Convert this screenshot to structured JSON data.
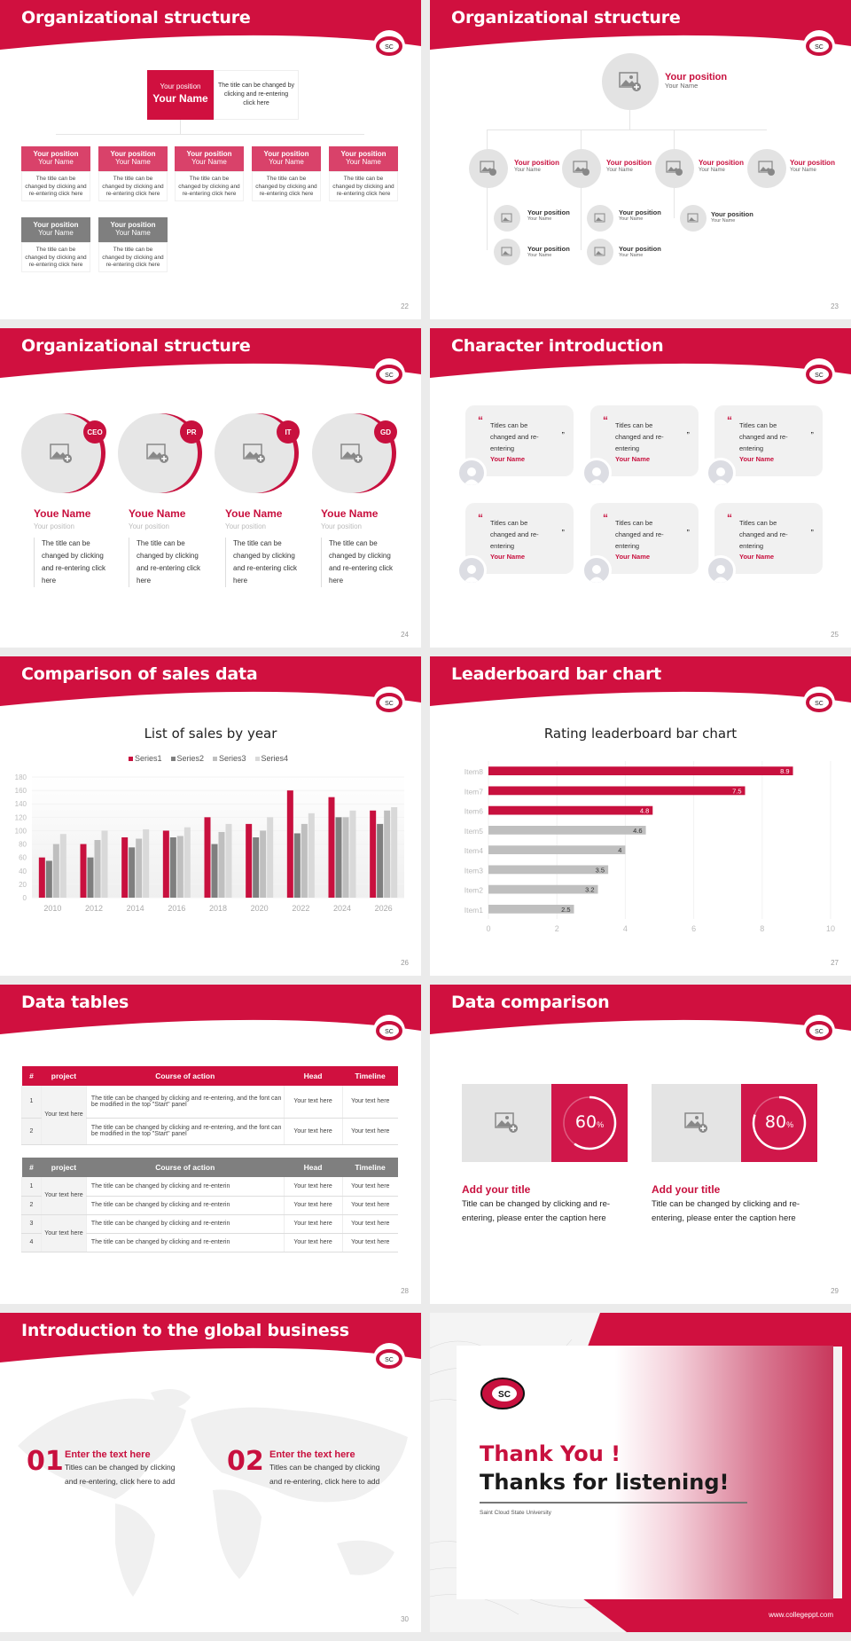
{
  "colors": {
    "brand_red": "#c8103e",
    "header_red": "#d0103f",
    "gray_box": "#7f7f7f",
    "light_gray": "#e3e3e3"
  },
  "logo": {
    "icon": "scsu-c-logo-icon",
    "text": "SC"
  },
  "slides": [
    {
      "id": "22",
      "title": "Organizational structure",
      "page": "22",
      "top": {
        "position": "Your position",
        "name": "Your Name",
        "desc": "The title can be changed by clicking and re-entering click here"
      },
      "boxes": [
        {
          "position": "Your position",
          "name": "Your Name",
          "desc": "The title can be changed by clicking and re-entering click here",
          "color": "red"
        },
        {
          "position": "Your position",
          "name": "Your Name",
          "desc": "The title can be changed by clicking and re-entering click here",
          "color": "red"
        },
        {
          "position": "Your position",
          "name": "Your Name",
          "desc": "The title can be changed by clicking and re-entering click here",
          "color": "red"
        },
        {
          "position": "Your position",
          "name": "Your Name",
          "desc": "The title can be changed by clicking and re-entering click here",
          "color": "red"
        },
        {
          "position": "Your position",
          "name": "Your Name",
          "desc": "The title can be changed by clicking and re-entering click here",
          "color": "red"
        },
        {
          "position": "Your position",
          "name": "Your Name",
          "desc": "The title can be changed by clicking and re-entering click here",
          "color": "gray"
        },
        {
          "position": "Your position",
          "name": "Your Name",
          "desc": "The title can be changed by clicking and re-entering click here",
          "color": "gray"
        }
      ]
    },
    {
      "id": "23",
      "title": "Organizational structure",
      "page": "23",
      "top": {
        "position": "Your position",
        "name": "Your Name"
      },
      "level2": [
        {
          "position": "Your position",
          "name": "Your Name"
        },
        {
          "position": "Your position",
          "name": "Your Name"
        },
        {
          "position": "Your position",
          "name": "Your Name"
        },
        {
          "position": "Your position",
          "name": "Your Name"
        }
      ],
      "level3": [
        {
          "position": "Your position",
          "name": "Your Name"
        },
        {
          "position": "Your position",
          "name": "Your Name"
        },
        {
          "position": "Your position",
          "name": "Your Name"
        },
        {
          "position": "Your position",
          "name": "Your Name"
        },
        {
          "position": "Your position",
          "name": "Your Name"
        }
      ]
    },
    {
      "id": "24",
      "title": "Organizational structure",
      "page": "24",
      "people": [
        {
          "badge": "CEO",
          "name": "Youe Name",
          "position": "Your position",
          "desc": "The title can be changed by clicking and re-entering click here"
        },
        {
          "badge": "PR",
          "name": "Youe Name",
          "position": "Your position",
          "desc": "The title can be changed by clicking and re-entering click here"
        },
        {
          "badge": "IT",
          "name": "Youe Name",
          "position": "Your position",
          "desc": "The title can be changed by clicking and re-entering click here"
        },
        {
          "badge": "GD",
          "name": "Youe Name",
          "position": "Your position",
          "desc": "The title can be changed by clicking and re-entering click here"
        }
      ]
    },
    {
      "id": "25",
      "title": "Character introduction",
      "page": "25",
      "cards": [
        {
          "quote_open": "“",
          "text": "Titles can be changed and re-entering",
          "quote_close": "”",
          "name": "Your Name"
        },
        {
          "quote_open": "“",
          "text": "Titles can be changed and re-entering",
          "quote_close": "”",
          "name": "Your Name"
        },
        {
          "quote_open": "“",
          "text": "Titles can be changed and re-entering",
          "quote_close": "”",
          "name": "Your Name"
        },
        {
          "quote_open": "“",
          "text": "Titles can be changed and re-entering",
          "quote_close": "”",
          "name": "Your Name"
        },
        {
          "quote_open": "“",
          "text": "Titles can be changed and re-entering",
          "quote_close": "”",
          "name": "Your Name"
        },
        {
          "quote_open": "“",
          "text": "Titles can be changed and re-entering",
          "quote_close": "”",
          "name": "Your Name"
        }
      ]
    },
    {
      "id": "26",
      "title": "Comparison of sales data",
      "page": "26"
    },
    {
      "id": "27",
      "title": "Leaderboard bar chart",
      "page": "27"
    },
    {
      "id": "28",
      "title": "Data tables",
      "page": "28",
      "table1": {
        "headers": [
          "#",
          "project",
          "Course of action",
          "Head",
          "Timeline"
        ],
        "project": "Your text here",
        "rows": [
          {
            "n": "1",
            "action": "The title can be changed by clicking and re-entering, and the font can be modified in the top \"Start\" panel",
            "head": "Your text here",
            "timeline": "Your text here"
          },
          {
            "n": "2",
            "action": "The title can be changed by clicking and re-entering, and the font can be modified in the top \"Start\" panel",
            "head": "Your text here",
            "timeline": "Your text here"
          }
        ]
      },
      "table2": {
        "headers": [
          "#",
          "project",
          "Course of action",
          "Head",
          "Timeline"
        ],
        "projects": [
          "Your text here",
          "Your text here"
        ],
        "rows": [
          {
            "n": "1",
            "action": "The title can be changed by clicking and re-enterin",
            "head": "Your text here",
            "timeline": "Your text here"
          },
          {
            "n": "2",
            "action": "The title can be changed by clicking and re-enterin",
            "head": "Your text here",
            "timeline": "Your text here"
          },
          {
            "n": "3",
            "action": "The title can be changed by clicking and re-enterin",
            "head": "Your text here",
            "timeline": "Your text here"
          },
          {
            "n": "4",
            "action": "The title can be changed by clicking and re-enterin",
            "head": "Your text here",
            "timeline": "Your text here"
          }
        ]
      }
    },
    {
      "id": "29",
      "title": "Data comparison",
      "page": "29",
      "items": [
        {
          "percent": "60",
          "unit": "%",
          "title": "Add your title",
          "desc": "Title can be changed by clicking and re-entering, please enter the caption here"
        },
        {
          "percent": "80",
          "unit": "%",
          "title": "Add your title",
          "desc": "Title can be changed by clicking and re-entering, please enter the caption here"
        }
      ]
    },
    {
      "id": "30",
      "title": "Introduction to the global business",
      "page": "30",
      "items": [
        {
          "num": "01",
          "title": "Enter the text here",
          "desc": "Titles can be changed by clicking and re-entering, click here to add"
        },
        {
          "num": "02",
          "title": "Enter the text here",
          "desc": "Titles can be changed by clicking and re-entering, click here to add"
        }
      ]
    },
    {
      "id": "end",
      "thank_you": "Thank You !",
      "thanks": "Thanks for listening!",
      "university": "Saint Cloud State University",
      "website": "www.collegeppt.com"
    }
  ],
  "chart_data": [
    {
      "type": "bar",
      "title": "List of sales by year",
      "categories": [
        "2010",
        "2012",
        "2014",
        "2016",
        "2018",
        "2020",
        "2022",
        "2024",
        "2026"
      ],
      "series": [
        {
          "name": "Series1",
          "color": "#c8103e",
          "values": [
            60,
            80,
            90,
            100,
            120,
            110,
            160,
            150,
            130
          ]
        },
        {
          "name": "Series2",
          "color": "#7f7f7f",
          "values": [
            55,
            60,
            75,
            90,
            80,
            90,
            96,
            120,
            110
          ]
        },
        {
          "name": "Series3",
          "color": "#bfbfbf",
          "values": [
            80,
            86,
            88,
            92,
            98,
            100,
            110,
            120,
            130
          ]
        },
        {
          "name": "Series4",
          "color": "#d9d9d9",
          "values": [
            95,
            100,
            102,
            105,
            110,
            120,
            126,
            130,
            135
          ]
        }
      ],
      "yticks": [
        "0",
        "20",
        "40",
        "60",
        "80",
        "100",
        "120",
        "140",
        "160",
        "180"
      ],
      "ylim": [
        0,
        180
      ],
      "xlabel": "",
      "ylabel": "",
      "legend_position": "top",
      "grid": true
    },
    {
      "type": "bar",
      "orientation": "horizontal",
      "title": "Rating leaderboard bar chart",
      "categories": [
        "Item8",
        "Item7",
        "Item6",
        "Item5",
        "Item4",
        "Item3",
        "Item2",
        "Item1"
      ],
      "values": [
        8.9,
        7.5,
        4.8,
        4.6,
        4,
        3.5,
        3.2,
        2.5
      ],
      "labels": [
        "8.9",
        "7.5",
        "4.8",
        "4.6",
        "4",
        "3.5",
        "3.2",
        "2.5"
      ],
      "colors": [
        "#c8103e",
        "#c8103e",
        "#c8103e",
        "#bfbfbf",
        "#bfbfbf",
        "#bfbfbf",
        "#bfbfbf",
        "#bfbfbf"
      ],
      "xticks": [
        "0",
        "2",
        "4",
        "6",
        "8",
        "10"
      ],
      "xlim": [
        0,
        10
      ],
      "grid": true
    }
  ]
}
